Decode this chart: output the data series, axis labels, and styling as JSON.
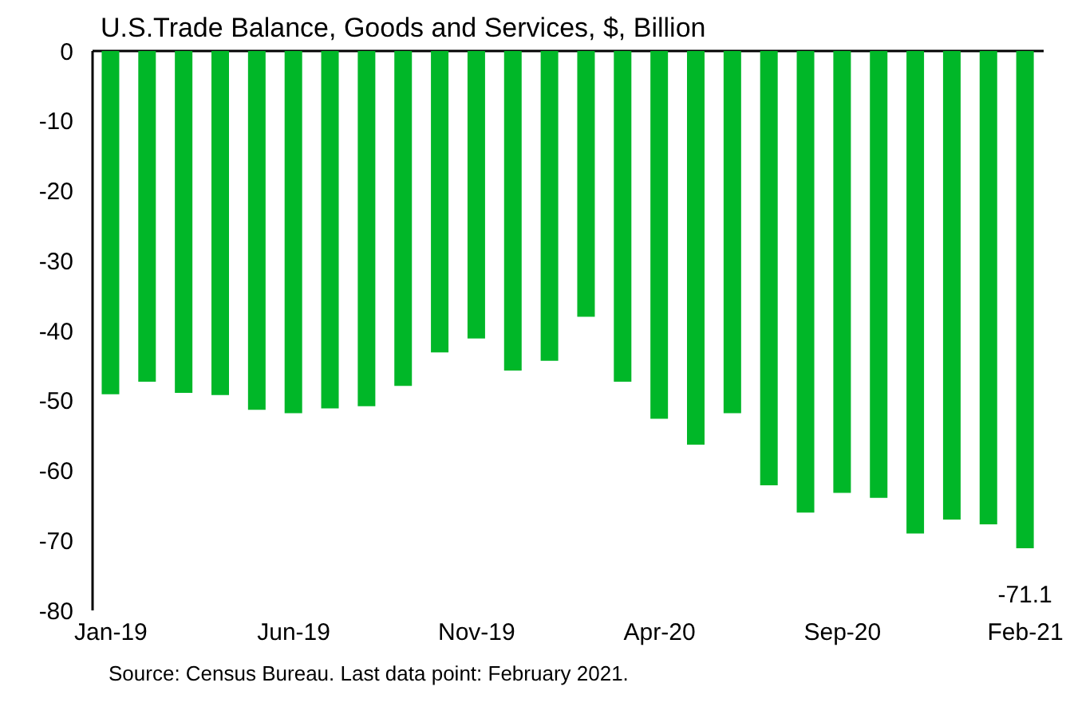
{
  "chart_data": {
    "type": "bar",
    "title": "U.S.Trade Balance, Goods and Services, $, Billion",
    "categories": [
      "Jan-19",
      null,
      null,
      null,
      null,
      "Jun-19",
      null,
      null,
      null,
      null,
      "Nov-19",
      null,
      null,
      null,
      null,
      "Apr-20",
      null,
      null,
      null,
      null,
      "Sep-20",
      null,
      null,
      null,
      null,
      "Feb-21"
    ],
    "values": [
      -49.1,
      -47.3,
      -48.9,
      -49.2,
      -51.3,
      -51.8,
      -51.1,
      -50.8,
      -47.9,
      -43.1,
      -41.1,
      -45.7,
      -44.3,
      -38.0,
      -47.3,
      -52.6,
      -56.3,
      -51.8,
      -62.1,
      -66.0,
      -63.2,
      -63.9,
      -69.0,
      -67.0,
      -67.7,
      -71.1
    ],
    "value_labels": [
      null,
      null,
      null,
      null,
      null,
      null,
      null,
      null,
      null,
      null,
      null,
      null,
      null,
      null,
      null,
      null,
      null,
      null,
      null,
      null,
      null,
      null,
      null,
      null,
      null,
      "-71.1"
    ],
    "color": "#00b728",
    "ylim": [
      -80,
      0
    ],
    "yticks": [
      -80,
      -70,
      -60,
      -50,
      -40,
      -30,
      -20,
      -10,
      0
    ],
    "grid": false,
    "annotations": [
      "Source: Census Bureau. Last data point: February 2021."
    ]
  }
}
